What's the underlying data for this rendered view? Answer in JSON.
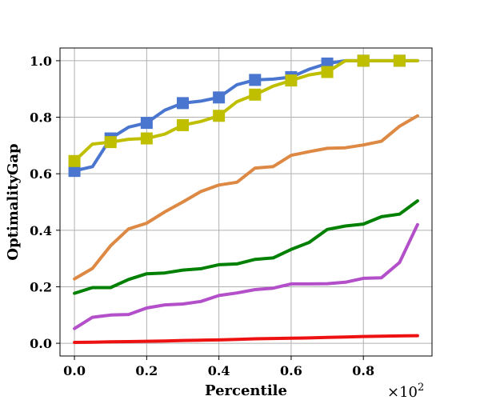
{
  "chart_data": {
    "type": "line",
    "title": "",
    "xlabel": "Percentile",
    "ylabel": "OptimalityGap",
    "x_scale_label": "×10",
    "x_scale_exponent": "2",
    "xlim": [
      -0.04,
      0.99
    ],
    "ylim": [
      -0.045,
      1.045
    ],
    "xticks": [
      0.0,
      0.2,
      0.4,
      0.6,
      0.8
    ],
    "xtick_labels": [
      "0.0",
      "0.2",
      "0.4",
      "0.6",
      "0.8"
    ],
    "yticks": [
      0.0,
      0.2,
      0.4,
      0.6,
      0.8,
      1.0
    ],
    "ytick_labels": [
      "0.0",
      "0.2",
      "0.4",
      "0.6",
      "0.8",
      "1.0"
    ],
    "grid": true,
    "x": [
      0.0,
      0.05,
      0.1,
      0.15,
      0.2,
      0.25,
      0.3,
      0.35,
      0.4,
      0.45,
      0.5,
      0.55,
      0.6,
      0.65,
      0.7,
      0.75,
      0.8,
      0.85,
      0.9,
      0.95
    ],
    "series": [
      {
        "name": "blue",
        "color": "#4a76d0",
        "values": [
          0.61,
          0.625,
          0.725,
          0.765,
          0.78,
          0.825,
          0.85,
          0.857,
          0.87,
          0.915,
          0.932,
          0.935,
          0.942,
          0.97,
          0.99,
          1.0,
          1.0,
          1.0,
          1.0,
          1.0
        ],
        "marker": "square",
        "marker_x": [
          0.0,
          0.1,
          0.2,
          0.3,
          0.4,
          0.5,
          0.6,
          0.7,
          0.8,
          0.9
        ]
      },
      {
        "name": "yellow",
        "color": "#bfbf00",
        "values": [
          0.645,
          0.705,
          0.712,
          0.722,
          0.725,
          0.74,
          0.772,
          0.785,
          0.805,
          0.855,
          0.88,
          0.91,
          0.93,
          0.95,
          0.96,
          1.0,
          1.0,
          1.0,
          1.0,
          1.0
        ],
        "marker": "square",
        "marker_x": [
          0.0,
          0.1,
          0.2,
          0.3,
          0.4,
          0.5,
          0.6,
          0.7,
          0.8,
          0.9
        ]
      },
      {
        "name": "orange",
        "color": "#dd8843",
        "values": [
          0.228,
          0.265,
          0.345,
          0.405,
          0.425,
          0.465,
          0.5,
          0.537,
          0.56,
          0.57,
          0.62,
          0.625,
          0.665,
          0.678,
          0.69,
          0.692,
          0.702,
          0.715,
          0.768,
          0.805
        ],
        "marker": "none"
      },
      {
        "name": "green",
        "color": "#008000",
        "values": [
          0.177,
          0.197,
          0.197,
          0.226,
          0.246,
          0.249,
          0.259,
          0.264,
          0.278,
          0.281,
          0.297,
          0.302,
          0.332,
          0.357,
          0.403,
          0.415,
          0.422,
          0.448,
          0.457,
          0.504
        ],
        "marker": "none"
      },
      {
        "name": "purple",
        "color": "#b24fc9",
        "values": [
          0.052,
          0.092,
          0.1,
          0.102,
          0.125,
          0.136,
          0.139,
          0.148,
          0.169,
          0.178,
          0.19,
          0.195,
          0.21,
          0.21,
          0.211,
          0.216,
          0.23,
          0.232,
          0.286,
          0.42
        ],
        "marker": "none"
      },
      {
        "name": "red",
        "color": "#ee1111",
        "values": [
          0.003,
          0.004,
          0.005,
          0.006,
          0.007,
          0.008,
          0.01,
          0.011,
          0.012,
          0.014,
          0.016,
          0.017,
          0.018,
          0.019,
          0.021,
          0.022,
          0.024,
          0.025,
          0.026,
          0.027
        ],
        "marker": "none"
      }
    ]
  }
}
